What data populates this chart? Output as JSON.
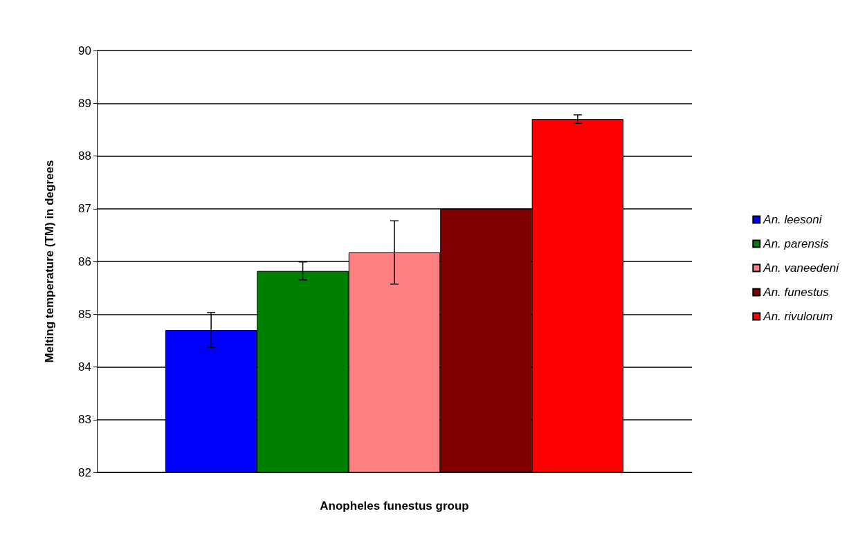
{
  "chart_data": {
    "type": "bar",
    "xlabel": "Anopheles funestus group",
    "ylabel": "Melting temperature (TM) in degrees",
    "categories": [
      null
    ],
    "series": [
      {
        "name": "An. leesoni",
        "color": "#0000ff",
        "values": [
          84.7
        ],
        "errors": [
          0.33
        ]
      },
      {
        "name": "An. parensis",
        "color": "#008000",
        "values": [
          85.82
        ],
        "errors": [
          0.17
        ]
      },
      {
        "name": "An. vaneedeni",
        "color": "#ff8080",
        "values": [
          86.17
        ],
        "errors": [
          0.6
        ]
      },
      {
        "name": "An. funestus",
        "color": "#800000",
        "values": [
          87.0
        ],
        "errors": [
          null
        ]
      },
      {
        "name": "An. rivulorum",
        "color": "#ff0000",
        "values": [
          88.7
        ],
        "errors": [
          0.08
        ]
      }
    ],
    "ylim": [
      82,
      90
    ],
    "yticks": [
      82,
      83,
      84,
      85,
      86,
      87,
      88,
      89,
      90
    ],
    "grid": "y",
    "legend": "right"
  }
}
